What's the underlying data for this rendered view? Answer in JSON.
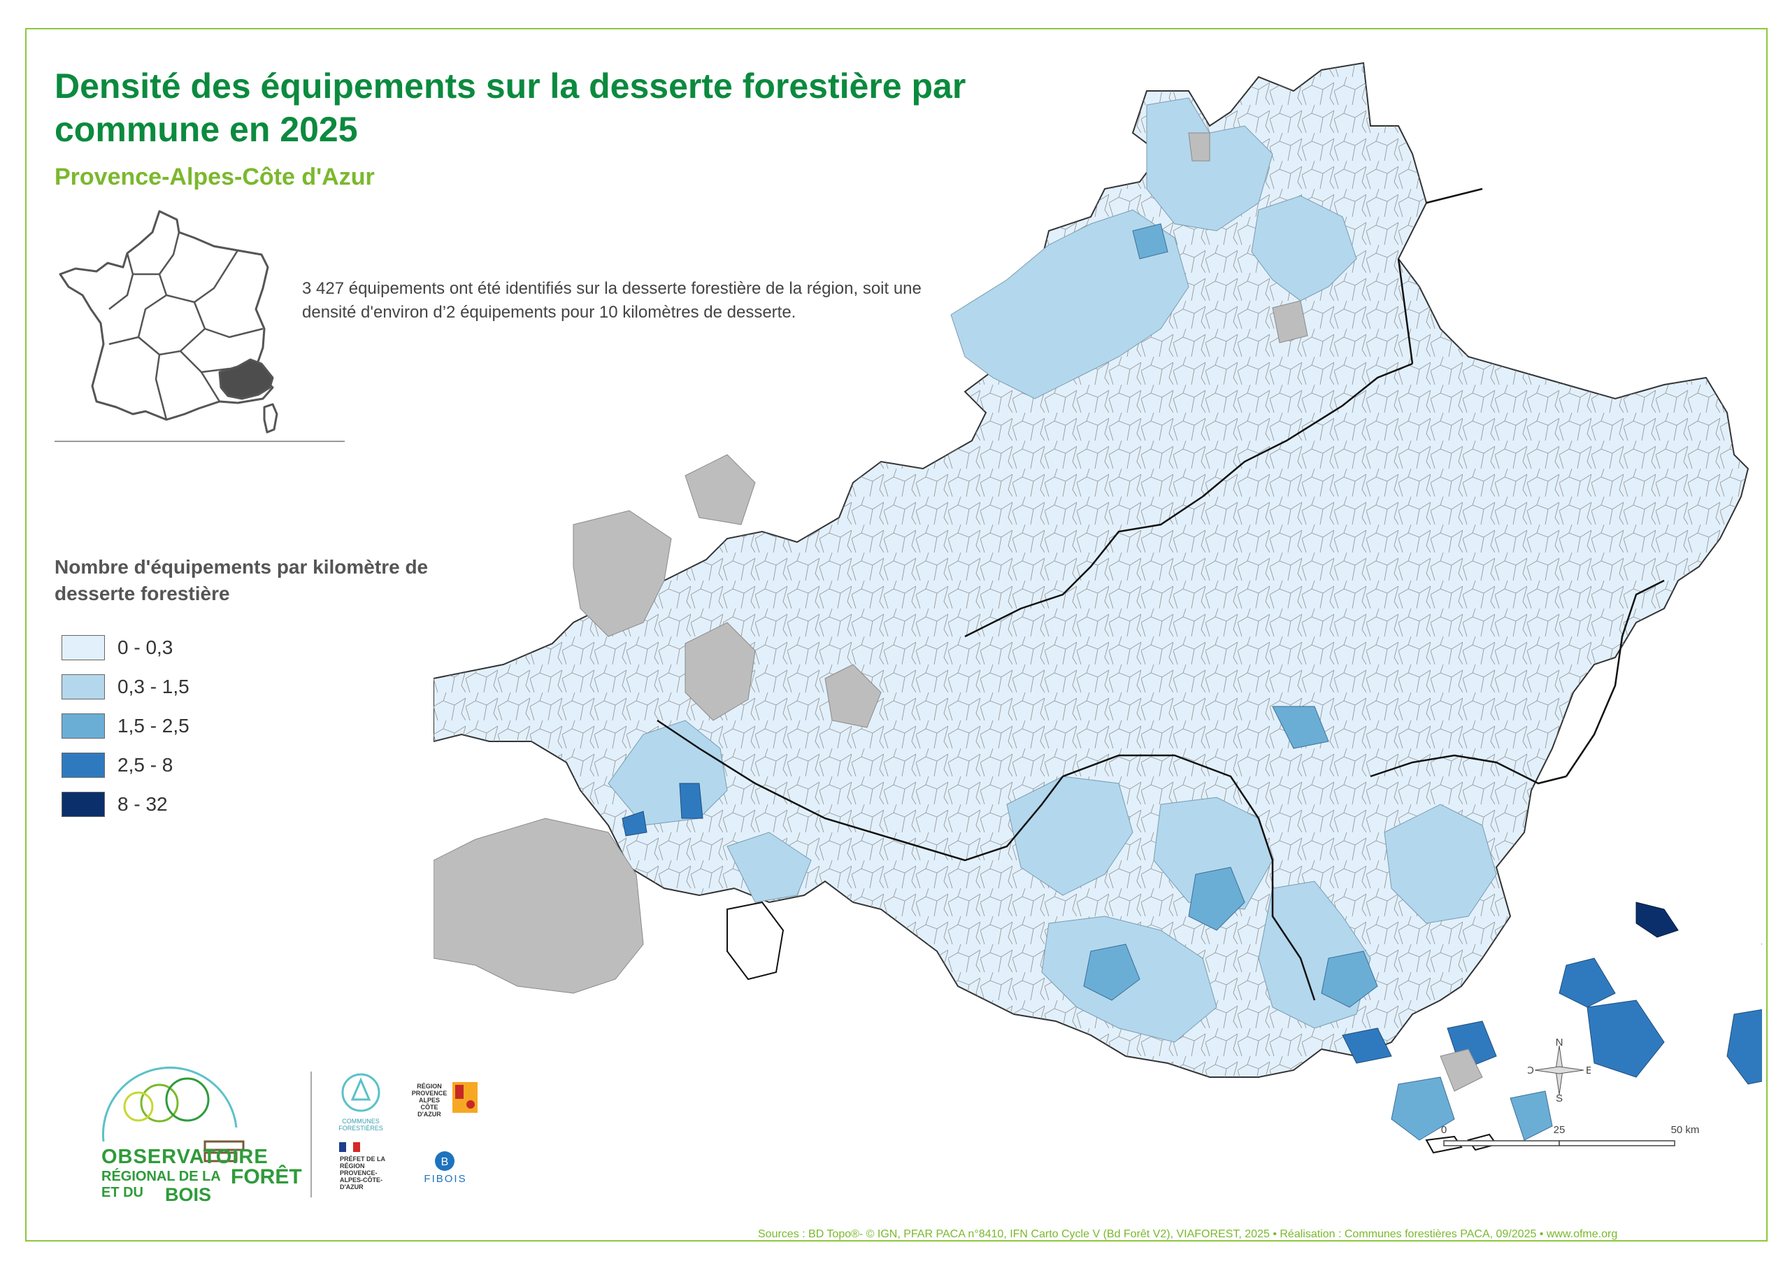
{
  "title": "Densité des équipements sur la desserte forestière par commune en 2025",
  "subtitle": "Provence-Alpes-Côte d'Azur",
  "description": "3 427 équipements ont été identifiés sur la desserte forestière de la région, soit une densité d'environ d’2 équipements pour 10 kilomètres de desserte.",
  "legend": {
    "title": "Nombre d'équipements par kilomètre de desserte forestière",
    "classes": [
      {
        "label": "0 - 0,3",
        "color": "#e2f0fb"
      },
      {
        "label": "0,3 - 1,5",
        "color": "#b3d7ec"
      },
      {
        "label": "1,5 - 2,5",
        "color": "#6aaed6"
      },
      {
        "label": "2,5 - 8",
        "color": "#2f7abf"
      },
      {
        "label": "8 - 32",
        "color": "#0b2f6b"
      }
    ],
    "no_data_color": "#bdbdbd"
  },
  "compass": {
    "n": "N",
    "s": "S",
    "e": "E",
    "o": "O"
  },
  "scale_bar": {
    "ticks": [
      "0",
      "25",
      "50 km"
    ]
  },
  "logos": {
    "ofme": {
      "line1": "OBSERVATOIRE",
      "line2": "RÉGIONAL DE LA",
      "line3": "ET DU",
      "foret": "FORÊT",
      "bois": "BOIS"
    },
    "communes_forestieres": "COMMUNES FORESTIÈRES",
    "region": "RÉGION PROVENCE ALPES CÔTE D'AZUR",
    "prefet": "PRÉFET DE LA RÉGION PROVENCE-ALPES-CÔTE-D'AZUR",
    "fibois": "FIBOIS"
  },
  "sources": "Sources : BD Topo®- © IGN, PFAR PACA n°8410, IFN Carto Cycle V (Bd Forêt V2), VIAFOREST, 2025 • Réalisation : Communes forestières PACA, 09/2025 • www.ofme.org",
  "colors": {
    "frame": "#8dc63f",
    "title": "#0b8a3e",
    "subtitle": "#7bb82d",
    "region_highlight": "#4d4d4d"
  }
}
